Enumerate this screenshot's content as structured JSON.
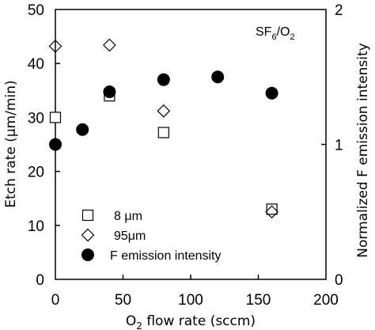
{
  "chart_data": {
    "type": "scatter",
    "annotation": {
      "main": "SF",
      "sub1": "6",
      "mid": "/O",
      "sub2": "2"
    },
    "x_axis": {
      "title_prefix": "O",
      "title_sub": "2",
      "title_suffix": " flow rate (sccm)",
      "range": [
        0,
        200
      ],
      "ticks": [
        0,
        50,
        100,
        150,
        200
      ],
      "tick_labels": [
        "0",
        "50",
        "100",
        "150",
        "200"
      ]
    },
    "y_axis": {
      "title": "Etch rate (μm/min)",
      "range": [
        0,
        50
      ],
      "ticks": [
        0,
        10,
        20,
        30,
        40,
        50
      ],
      "tick_labels": [
        "0",
        "10",
        "20",
        "30",
        "40",
        "50"
      ]
    },
    "y2_axis": {
      "title": "Normalized F emission intensity",
      "range": [
        0,
        2
      ],
      "ticks": [
        0,
        1,
        2
      ],
      "tick_labels": [
        "0",
        "1",
        "2"
      ]
    },
    "grid": false,
    "legend_position": "bottom-left",
    "series": [
      {
        "name": "8 μm",
        "marker": "open-square",
        "axis": "left",
        "x": [
          0,
          40,
          80,
          160
        ],
        "y": [
          30.0,
          34.0,
          27.2,
          13.0
        ]
      },
      {
        "name": "95μm",
        "marker": "open-diamond",
        "axis": "left",
        "x": [
          0,
          40,
          80,
          160
        ],
        "y": [
          43.2,
          43.4,
          31.2,
          12.5
        ]
      },
      {
        "name": "F emission intensity",
        "marker": "filled-circle",
        "axis": "right",
        "x": [
          0,
          20,
          40,
          80,
          120,
          160
        ],
        "y": [
          1.0,
          1.11,
          1.39,
          1.48,
          1.5,
          1.38
        ]
      }
    ]
  }
}
